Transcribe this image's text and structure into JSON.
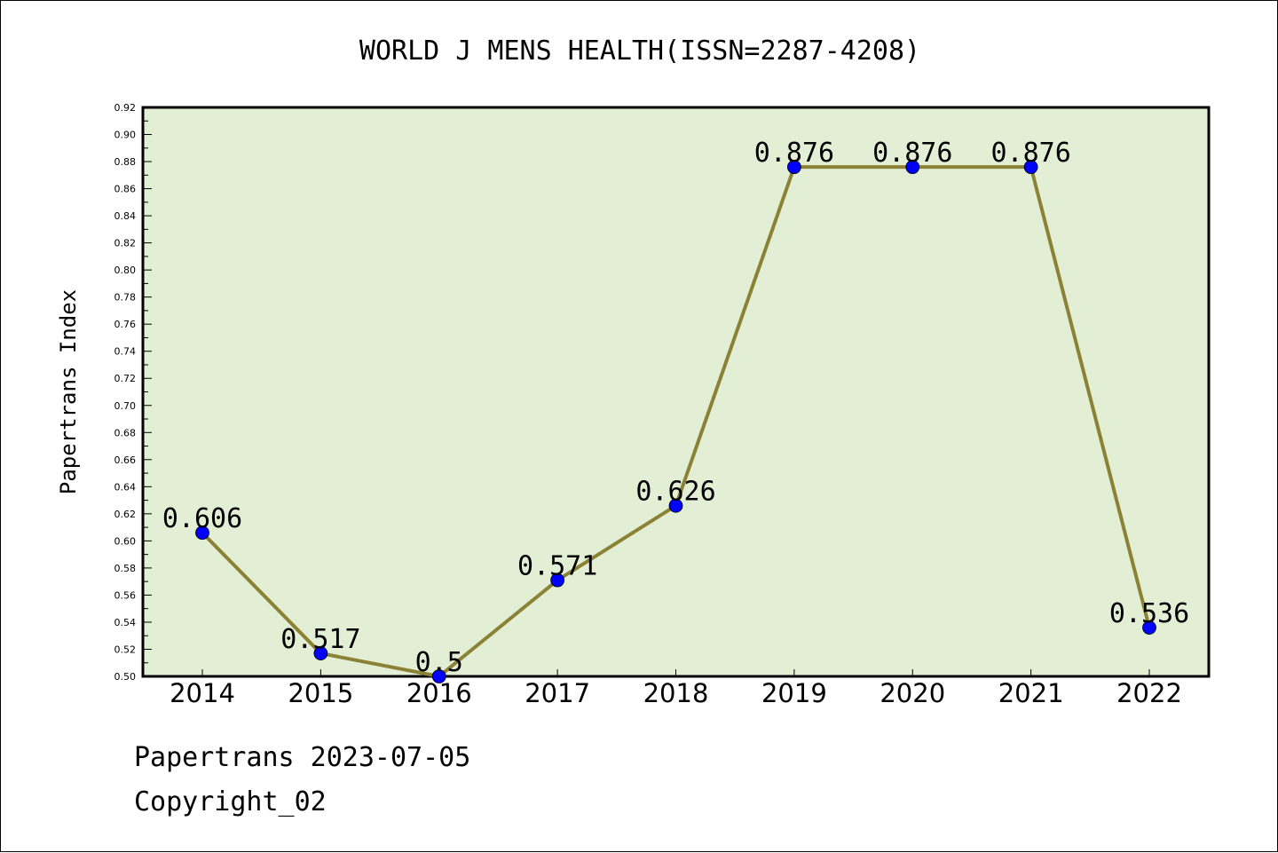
{
  "chart_data": {
    "type": "line",
    "title": "WORLD J MENS HEALTH(ISSN=2287-4208)",
    "xlabel": "",
    "ylabel": "Papertrans Index",
    "categories": [
      "2014",
      "2015",
      "2016",
      "2017",
      "2018",
      "2019",
      "2020",
      "2021",
      "2022"
    ],
    "series": [
      {
        "values": [
          0.606,
          0.517,
          0.5,
          0.571,
          0.626,
          0.876,
          0.876,
          0.876,
          0.536
        ],
        "labels": [
          "0.606",
          "0.517",
          "0.5",
          "0.571",
          "0.626",
          "0.876",
          "0.876",
          "0.876",
          "0.536"
        ]
      }
    ],
    "ylim": [
      0.5,
      0.92
    ],
    "yticks": [
      "0.50",
      "0.52",
      "0.54",
      "0.56",
      "0.58",
      "0.60",
      "0.62",
      "0.64",
      "0.66",
      "0.68",
      "0.70",
      "0.72",
      "0.74",
      "0.76",
      "0.78",
      "0.80",
      "0.82",
      "0.84",
      "0.86",
      "0.88",
      "0.90",
      "0.92"
    ],
    "grid": false,
    "colors": {
      "plot_background": "#e2efd5",
      "line": "#8b8235",
      "marker": "#0000ff"
    }
  },
  "footer": {
    "line1": "Papertrans 2023-07-05",
    "line2": "Copyright_02"
  }
}
